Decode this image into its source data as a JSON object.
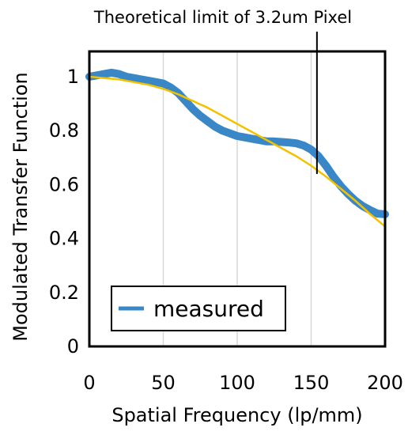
{
  "chart_data": {
    "type": "line",
    "title": "",
    "xlabel": "Spatial Frequency (lp/mm)",
    "ylabel": "Modulated Transfer Function",
    "xlim": [
      0,
      200
    ],
    "ylim": [
      0,
      1.0
    ],
    "x_ticks": [
      "0",
      "50",
      "100",
      "150",
      "200"
    ],
    "y_ticks": [
      "0",
      "0.2",
      "0.4",
      "0.6",
      "0.8",
      "1"
    ],
    "grid": "vertical",
    "legend": {
      "position": "bottom-left",
      "entries": [
        "measured"
      ]
    },
    "annotation": {
      "text": "Theoretical limit of 3.2um Pixel",
      "x": 155
    },
    "series": [
      {
        "name": "measured",
        "color": "#3a87c8",
        "x": [
          0,
          5,
          10,
          15,
          20,
          25,
          30,
          35,
          40,
          45,
          50,
          55,
          60,
          65,
          70,
          75,
          80,
          85,
          90,
          95,
          100,
          105,
          110,
          115,
          120,
          125,
          130,
          135,
          140,
          145,
          150,
          155,
          160,
          165,
          170,
          175,
          180,
          185,
          190,
          195,
          200
        ],
        "values": [
          1.0,
          1.005,
          1.01,
          1.015,
          1.01,
          1.0,
          0.995,
          0.99,
          0.985,
          0.98,
          0.975,
          0.96,
          0.94,
          0.91,
          0.88,
          0.855,
          0.835,
          0.815,
          0.8,
          0.79,
          0.78,
          0.775,
          0.77,
          0.765,
          0.76,
          0.76,
          0.758,
          0.756,
          0.753,
          0.745,
          0.73,
          0.705,
          0.67,
          0.63,
          0.595,
          0.565,
          0.54,
          0.52,
          0.505,
          0.492,
          0.49
        ]
      },
      {
        "name": "",
        "color": "#f2c200",
        "x": [
          0,
          10,
          20,
          30,
          40,
          50,
          60,
          70,
          80,
          90,
          100,
          110,
          120,
          130,
          140,
          150,
          160,
          170,
          180,
          190,
          200
        ],
        "values": [
          1.0,
          0.995,
          0.99,
          0.98,
          0.97,
          0.955,
          0.935,
          0.91,
          0.885,
          0.855,
          0.825,
          0.795,
          0.765,
          0.735,
          0.705,
          0.67,
          0.63,
          0.585,
          0.54,
          0.49,
          0.445
        ]
      }
    ]
  }
}
